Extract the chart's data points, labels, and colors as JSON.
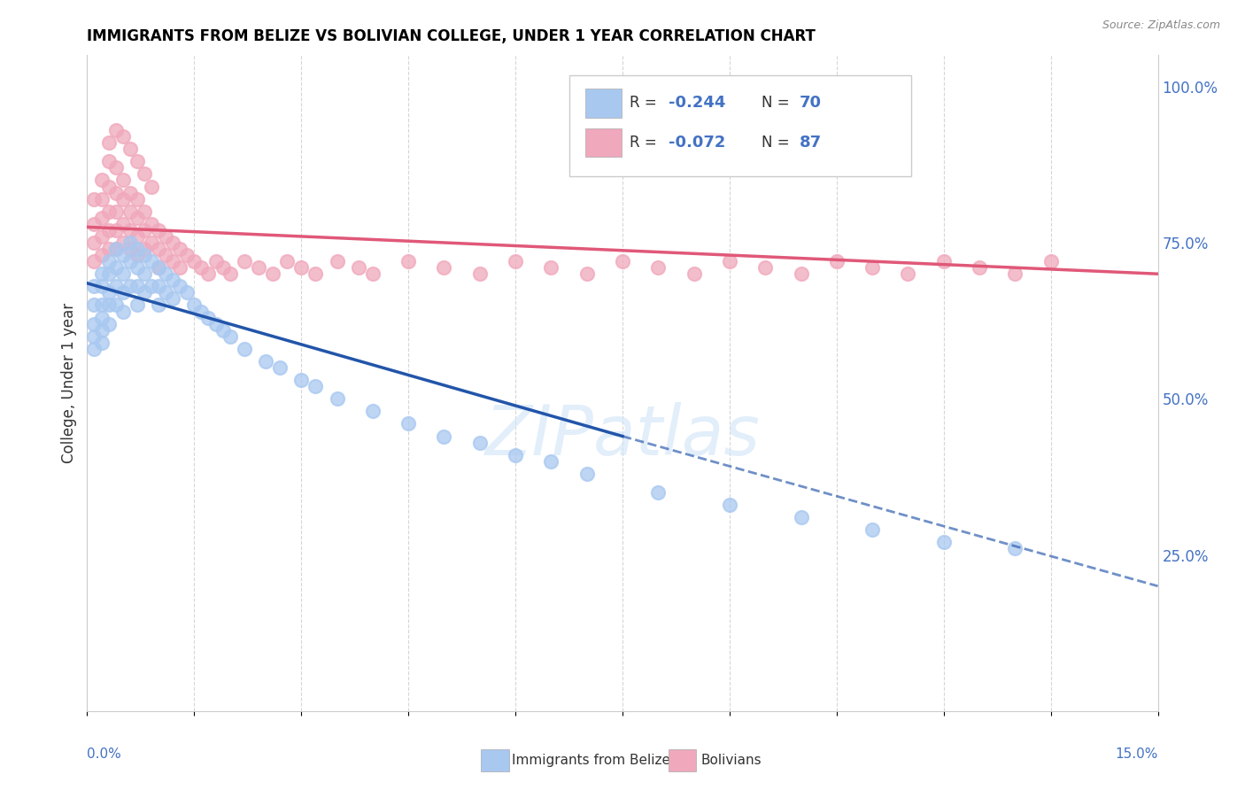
{
  "title": "IMMIGRANTS FROM BELIZE VS BOLIVIAN COLLEGE, UNDER 1 YEAR CORRELATION CHART",
  "source": "Source: ZipAtlas.com",
  "ylabel": "College, Under 1 year",
  "legend_blue_r": "-0.244",
  "legend_blue_n": "70",
  "legend_pink_r": "-0.072",
  "legend_pink_n": "87",
  "legend_label_blue": "Immigrants from Belize",
  "legend_label_pink": "Bolivians",
  "blue_color": "#a8c8f0",
  "pink_color": "#f0a8bc",
  "blue_line_color": "#2255aa",
  "pink_line_color": "#e05878",
  "blue_scatter_x": [
    0.001,
    0.001,
    0.001,
    0.001,
    0.001,
    0.002,
    0.002,
    0.002,
    0.002,
    0.002,
    0.002,
    0.003,
    0.003,
    0.003,
    0.003,
    0.003,
    0.004,
    0.004,
    0.004,
    0.004,
    0.005,
    0.005,
    0.005,
    0.005,
    0.006,
    0.006,
    0.006,
    0.007,
    0.007,
    0.007,
    0.007,
    0.008,
    0.008,
    0.008,
    0.009,
    0.009,
    0.01,
    0.01,
    0.01,
    0.011,
    0.011,
    0.012,
    0.012,
    0.013,
    0.014,
    0.015,
    0.016,
    0.017,
    0.018,
    0.019,
    0.02,
    0.022,
    0.025,
    0.027,
    0.03,
    0.032,
    0.035,
    0.04,
    0.045,
    0.05,
    0.055,
    0.06,
    0.065,
    0.07,
    0.08,
    0.09,
    0.1,
    0.11,
    0.12,
    0.13
  ],
  "blue_scatter_y": [
    0.68,
    0.65,
    0.62,
    0.6,
    0.58,
    0.7,
    0.68,
    0.65,
    0.63,
    0.61,
    0.59,
    0.72,
    0.7,
    0.67,
    0.65,
    0.62,
    0.74,
    0.71,
    0.68,
    0.65,
    0.73,
    0.7,
    0.67,
    0.64,
    0.75,
    0.72,
    0.68,
    0.74,
    0.71,
    0.68,
    0.65,
    0.73,
    0.7,
    0.67,
    0.72,
    0.68,
    0.71,
    0.68,
    0.65,
    0.7,
    0.67,
    0.69,
    0.66,
    0.68,
    0.67,
    0.65,
    0.64,
    0.63,
    0.62,
    0.61,
    0.6,
    0.58,
    0.56,
    0.55,
    0.53,
    0.52,
    0.5,
    0.48,
    0.46,
    0.44,
    0.43,
    0.41,
    0.4,
    0.38,
    0.35,
    0.33,
    0.31,
    0.29,
    0.27,
    0.26
  ],
  "pink_scatter_x": [
    0.001,
    0.001,
    0.001,
    0.001,
    0.002,
    0.002,
    0.002,
    0.002,
    0.002,
    0.003,
    0.003,
    0.003,
    0.003,
    0.003,
    0.004,
    0.004,
    0.004,
    0.004,
    0.004,
    0.005,
    0.005,
    0.005,
    0.005,
    0.006,
    0.006,
    0.006,
    0.006,
    0.007,
    0.007,
    0.007,
    0.007,
    0.008,
    0.008,
    0.008,
    0.009,
    0.009,
    0.01,
    0.01,
    0.01,
    0.011,
    0.011,
    0.012,
    0.012,
    0.013,
    0.013,
    0.014,
    0.015,
    0.016,
    0.017,
    0.018,
    0.019,
    0.02,
    0.022,
    0.024,
    0.026,
    0.028,
    0.03,
    0.032,
    0.035,
    0.038,
    0.04,
    0.045,
    0.05,
    0.055,
    0.06,
    0.065,
    0.07,
    0.075,
    0.08,
    0.085,
    0.09,
    0.095,
    0.1,
    0.105,
    0.11,
    0.115,
    0.12,
    0.125,
    0.13,
    0.135,
    0.003,
    0.004,
    0.005,
    0.006,
    0.007,
    0.008,
    0.009
  ],
  "pink_scatter_y": [
    0.82,
    0.78,
    0.75,
    0.72,
    0.85,
    0.82,
    0.79,
    0.76,
    0.73,
    0.88,
    0.84,
    0.8,
    0.77,
    0.74,
    0.87,
    0.83,
    0.8,
    0.77,
    0.74,
    0.85,
    0.82,
    0.78,
    0.75,
    0.83,
    0.8,
    0.77,
    0.74,
    0.82,
    0.79,
    0.76,
    0.73,
    0.8,
    0.77,
    0.74,
    0.78,
    0.75,
    0.77,
    0.74,
    0.71,
    0.76,
    0.73,
    0.75,
    0.72,
    0.74,
    0.71,
    0.73,
    0.72,
    0.71,
    0.7,
    0.72,
    0.71,
    0.7,
    0.72,
    0.71,
    0.7,
    0.72,
    0.71,
    0.7,
    0.72,
    0.71,
    0.7,
    0.72,
    0.71,
    0.7,
    0.72,
    0.71,
    0.7,
    0.72,
    0.71,
    0.7,
    0.72,
    0.71,
    0.7,
    0.72,
    0.71,
    0.7,
    0.72,
    0.71,
    0.7,
    0.72,
    0.91,
    0.93,
    0.92,
    0.9,
    0.88,
    0.86,
    0.84
  ],
  "xlim": [
    0,
    0.15
  ],
  "ylim": [
    0,
    1.05
  ],
  "xtick_count": 11,
  "right_yticks": [
    0.0,
    0.25,
    0.5,
    0.75,
    1.0
  ],
  "right_yticklabels": [
    "",
    "25.0%",
    "50.0%",
    "75.0%",
    "100.0%"
  ],
  "blue_trend_start_x": 0.0,
  "blue_trend_end_x": 0.075,
  "blue_trend_dashed_start_x": 0.075,
  "blue_trend_dashed_end_x": 0.15,
  "blue_trend_start_y": 0.685,
  "blue_trend_end_y": 0.44,
  "blue_trend_dashed_end_y": 0.2,
  "pink_trend_start_x": 0.0,
  "pink_trend_end_x": 0.15,
  "pink_trend_start_y": 0.775,
  "pink_trend_end_y": 0.7
}
